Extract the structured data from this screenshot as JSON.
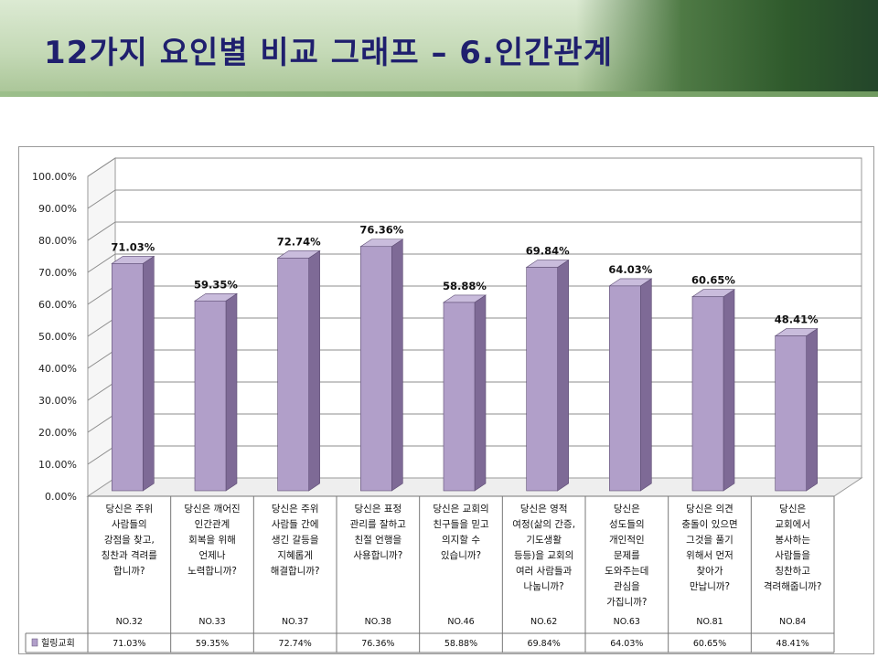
{
  "header": {
    "title": "12가지 요인별 비교 그래프 – 6.인간관계"
  },
  "colors": {
    "bar_front": "#b19fc9",
    "bar_side": "#7e6a96",
    "bar_top": "#c9bcdc",
    "title": "#1f1f6e"
  },
  "chart_data": {
    "type": "bar",
    "title": "",
    "xlabel": "",
    "ylabel": "",
    "ylim": [
      0,
      100
    ],
    "y_ticks": [
      "0.00%",
      "10.00%",
      "20.00%",
      "30.00%",
      "40.00%",
      "50.00%",
      "60.00%",
      "70.00%",
      "80.00%",
      "90.00%",
      "100.00%"
    ],
    "grid": true,
    "legend": "bottom-left",
    "categories": [
      [
        "당신은 주위",
        "사람들의",
        "강점을 찾고,",
        "칭찬과 격려를",
        "합니까?"
      ],
      [
        "당신은 깨어진",
        "인간관계",
        "회복을 위해",
        "언제나",
        "노력합니까?"
      ],
      [
        "당신은 주위",
        "사람들 간에",
        "생긴 갈등을",
        "지혜롭게",
        "해결합니까?"
      ],
      [
        "당신은 표정",
        "관리를 잘하고",
        "친절 언행을",
        "사용합니까?"
      ],
      [
        "당신은 교회의",
        "친구들을 믿고",
        "의지할 수",
        "있습니까?"
      ],
      [
        "당신은 영적",
        "여정(삶의 간증,",
        "기도생활",
        "등등)을 교회의",
        "여러 사람들과",
        "나눕니까?"
      ],
      [
        "당신은",
        "성도들의",
        "개인적인",
        "문제를",
        "도와주는데",
        "관심을",
        "가집니까?"
      ],
      [
        "당신은 의견",
        "충돌이 있으면",
        "그것을 풀기",
        "위해서 먼저",
        "찾아가",
        "만납니까?"
      ],
      [
        "당신은",
        "교회에서",
        "봉사하는",
        "사람들을",
        "칭찬하고",
        "격려해줍니까?"
      ]
    ],
    "codes": [
      "NO.32",
      "NO.33",
      "NO.37",
      "NO.38",
      "NO.46",
      "NO.62",
      "NO.63",
      "NO.81",
      "NO.84"
    ],
    "series": [
      {
        "name": "힐링교회",
        "values": [
          71.03,
          59.35,
          72.74,
          76.36,
          58.88,
          69.84,
          64.03,
          60.65,
          48.41
        ],
        "labels": [
          "71.03%",
          "59.35%",
          "72.74%",
          "76.36%",
          "58.88%",
          "69.84%",
          "64.03%",
          "60.65%",
          "48.41%"
        ]
      }
    ]
  }
}
